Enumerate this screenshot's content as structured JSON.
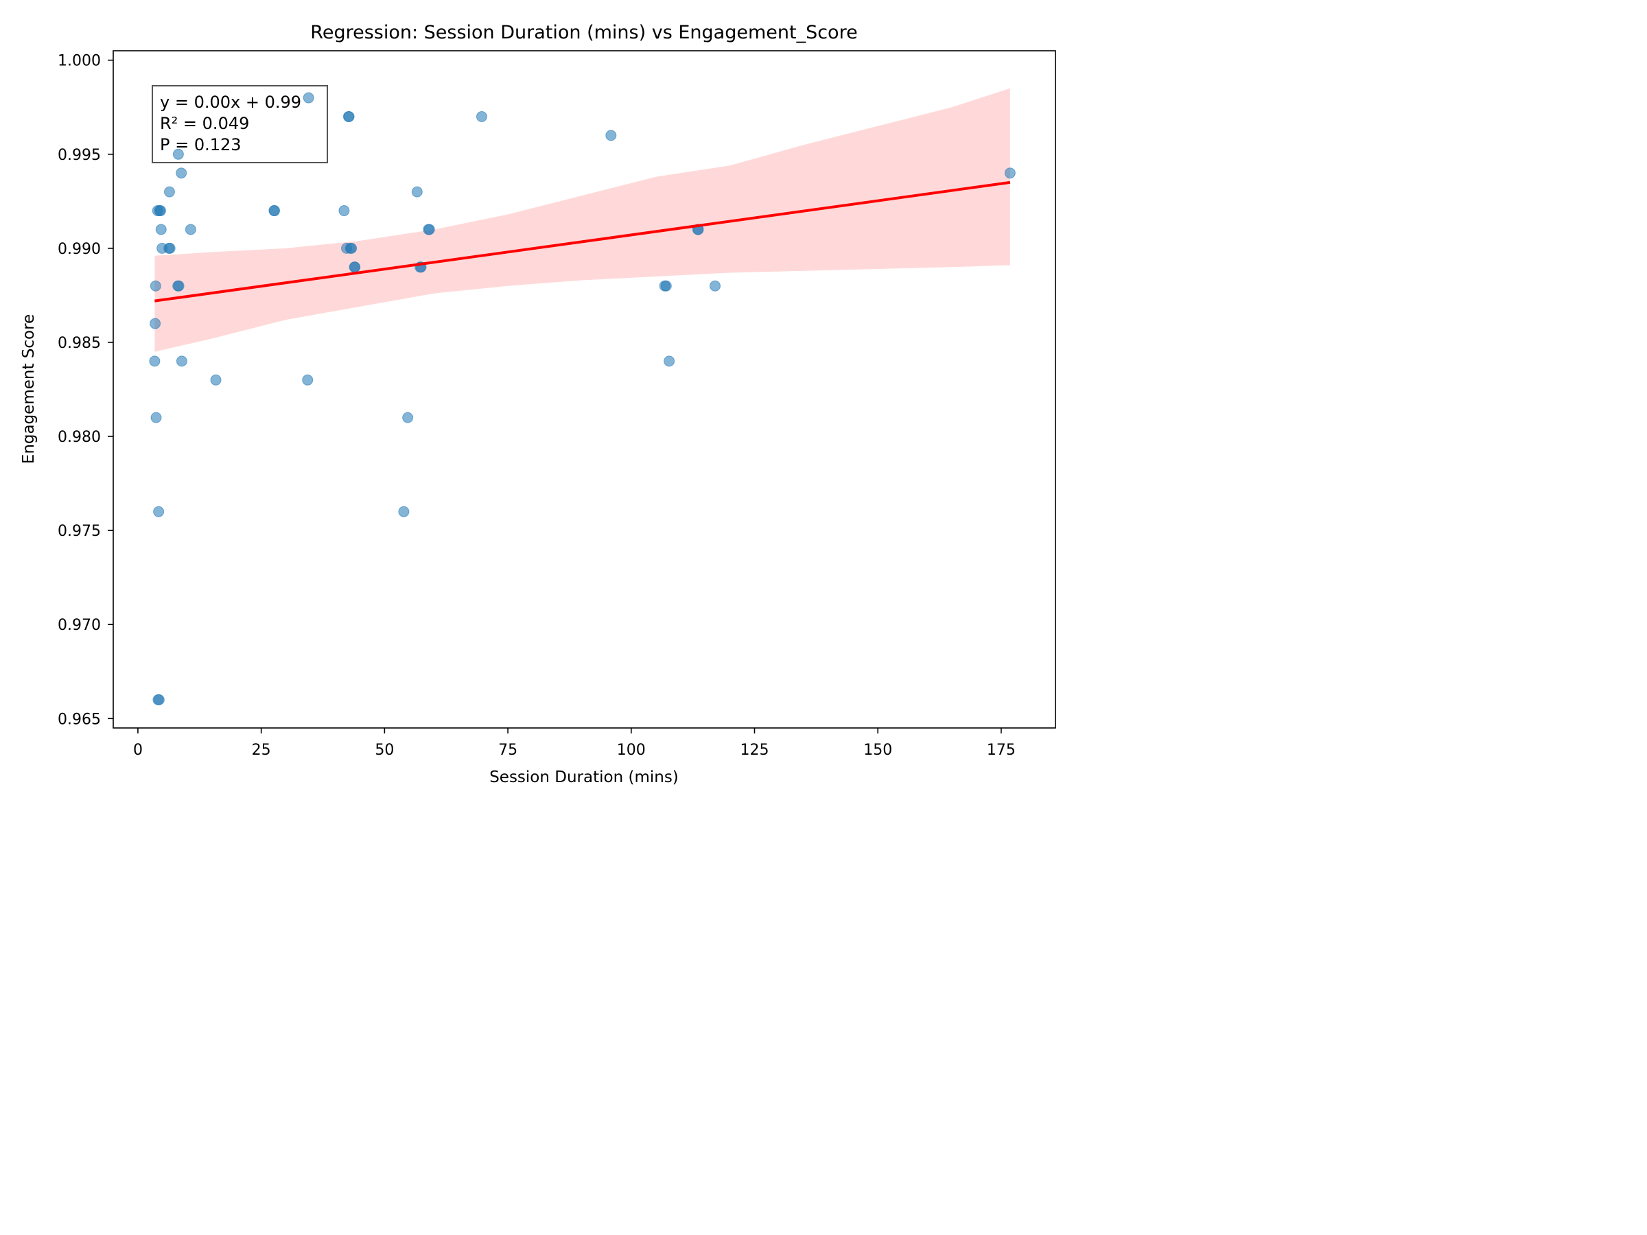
{
  "chart_data": {
    "type": "scatter",
    "title": "Regression: Session Duration (mins) vs Engagement_Score",
    "xlabel": "Session Duration (mins)",
    "ylabel": "Engagement Score",
    "xlim": [
      -5,
      186
    ],
    "ylim": [
      0.9645,
      1.0005
    ],
    "x_ticks": [
      0,
      25,
      50,
      75,
      100,
      125,
      150,
      175
    ],
    "y_ticks": [
      0.965,
      0.97,
      0.975,
      0.98,
      0.985,
      0.99,
      0.995,
      1.0
    ],
    "x_tick_labels": [
      "0",
      "25",
      "50",
      "75",
      "100",
      "125",
      "150",
      "175"
    ],
    "y_tick_labels": [
      "0.965",
      "0.970",
      "0.975",
      "0.980",
      "0.985",
      "0.990",
      "0.995",
      "1.000"
    ],
    "grid": false,
    "colors": {
      "points": "#1f77b4",
      "regression_line": "#ff0000",
      "confidence_band": "#ffcccc"
    },
    "points": [
      {
        "x": 3.4,
        "y": 0.984
      },
      {
        "x": 3.5,
        "y": 0.986
      },
      {
        "x": 3.6,
        "y": 0.988
      },
      {
        "x": 3.7,
        "y": 0.981
      },
      {
        "x": 4.0,
        "y": 0.992
      },
      {
        "x": 4.1,
        "y": 0.966
      },
      {
        "x": 4.2,
        "y": 0.976
      },
      {
        "x": 4.3,
        "y": 0.966
      },
      {
        "x": 4.4,
        "y": 0.992
      },
      {
        "x": 4.6,
        "y": 0.992
      },
      {
        "x": 4.7,
        "y": 0.991
      },
      {
        "x": 4.9,
        "y": 0.99
      },
      {
        "x": 6.3,
        "y": 0.99
      },
      {
        "x": 6.4,
        "y": 0.993
      },
      {
        "x": 6.5,
        "y": 0.99
      },
      {
        "x": 8.1,
        "y": 0.988
      },
      {
        "x": 8.2,
        "y": 0.995
      },
      {
        "x": 8.3,
        "y": 0.988
      },
      {
        "x": 8.8,
        "y": 0.994
      },
      {
        "x": 8.9,
        "y": 0.984
      },
      {
        "x": 10.7,
        "y": 0.991
      },
      {
        "x": 15.8,
        "y": 0.983
      },
      {
        "x": 27.6,
        "y": 0.992
      },
      {
        "x": 27.7,
        "y": 0.992
      },
      {
        "x": 34.4,
        "y": 0.983
      },
      {
        "x": 34.6,
        "y": 0.998
      },
      {
        "x": 41.8,
        "y": 0.992
      },
      {
        "x": 42.3,
        "y": 0.99
      },
      {
        "x": 42.7,
        "y": 0.997
      },
      {
        "x": 42.8,
        "y": 0.997
      },
      {
        "x": 43.1,
        "y": 0.99
      },
      {
        "x": 43.3,
        "y": 0.99
      },
      {
        "x": 43.9,
        "y": 0.989
      },
      {
        "x": 44.0,
        "y": 0.989
      },
      {
        "x": 53.9,
        "y": 0.976
      },
      {
        "x": 54.7,
        "y": 0.981
      },
      {
        "x": 56.6,
        "y": 0.993
      },
      {
        "x": 57.2,
        "y": 0.989
      },
      {
        "x": 57.4,
        "y": 0.989
      },
      {
        "x": 58.9,
        "y": 0.991
      },
      {
        "x": 59.1,
        "y": 0.991
      },
      {
        "x": 69.7,
        "y": 0.997
      },
      {
        "x": 95.9,
        "y": 0.996
      },
      {
        "x": 106.8,
        "y": 0.988
      },
      {
        "x": 107.1,
        "y": 0.988
      },
      {
        "x": 107.7,
        "y": 0.984
      },
      {
        "x": 113.5,
        "y": 0.991
      },
      {
        "x": 113.6,
        "y": 0.991
      },
      {
        "x": 117.0,
        "y": 0.988
      },
      {
        "x": 176.8,
        "y": 0.994
      }
    ],
    "regression_line": {
      "x": [
        3.4,
        176.8
      ],
      "y": [
        0.9872,
        0.9935
      ]
    },
    "confidence_band": {
      "x": [
        3.4,
        15,
        30,
        45,
        60,
        75,
        90,
        105,
        120,
        135,
        150,
        165,
        176.8
      ],
      "upper": [
        0.9896,
        0.9898,
        0.99,
        0.9904,
        0.991,
        0.9918,
        0.9928,
        0.9938,
        0.9944,
        0.9955,
        0.9965,
        0.9975,
        0.9985
      ],
      "lower": [
        0.9845,
        0.9852,
        0.9862,
        0.9869,
        0.9876,
        0.988,
        0.9883,
        0.9885,
        0.9887,
        0.9888,
        0.9889,
        0.989,
        0.9891
      ]
    },
    "annotation": [
      "y = 0.00x + 0.99",
      "R² = 0.049",
      "P = 0.123"
    ]
  }
}
